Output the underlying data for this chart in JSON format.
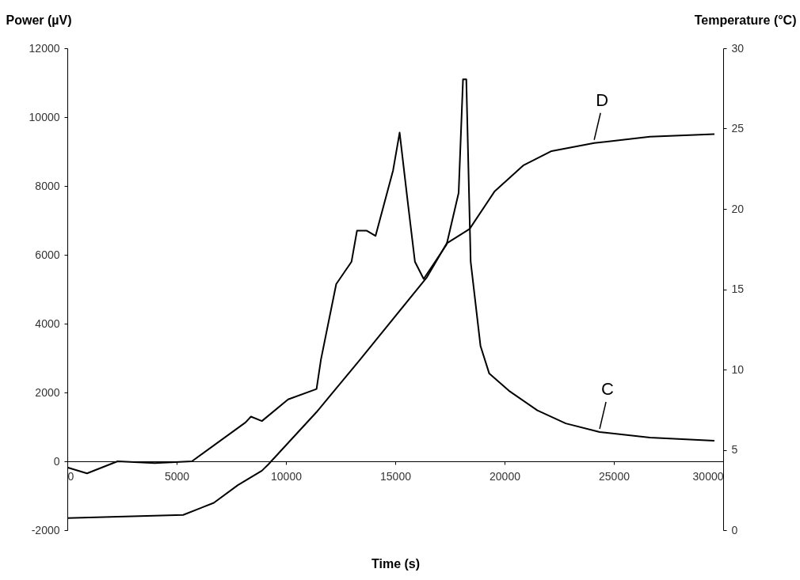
{
  "chart_data": {
    "type": "line",
    "xlabel": "Time (s)",
    "ylabel": "Power (µV)",
    "y2label": "Temperature (°C)",
    "xlim": [
      0,
      30000
    ],
    "xticks": [
      0,
      5000,
      10000,
      15000,
      20000,
      25000,
      30000
    ],
    "ylim": [
      -2000,
      12000
    ],
    "yticks": [
      -2000,
      0,
      2000,
      4000,
      6000,
      8000,
      10000,
      12000
    ],
    "y2lim": [
      0,
      30
    ],
    "y2ticks": [
      0,
      5,
      10,
      15,
      20,
      25,
      30
    ],
    "grid": false,
    "marker": "none",
    "line_style": "solid",
    "series": [
      {
        "name": "C",
        "color": "#000000",
        "x": [
          0,
          900,
          2300,
          4000,
          5700,
          8150,
          8400,
          8900,
          10100,
          11400,
          11600,
          12300,
          13000,
          13250,
          13700,
          14100,
          14900,
          15200,
          15550,
          15900,
          16300,
          17350,
          17900,
          18100,
          18250,
          18450,
          18900,
          19300,
          20200,
          21500,
          22800,
          24350,
          26650,
          29600
        ],
        "values": [
          -180,
          -350,
          0,
          -50,
          0,
          1130,
          1300,
          1170,
          1800,
          2100,
          2950,
          5150,
          5800,
          6700,
          6700,
          6550,
          8450,
          9550,
          7650,
          5800,
          5300,
          6300,
          7800,
          11100,
          11100,
          5800,
          3350,
          2550,
          2050,
          1480,
          1100,
          850,
          690,
          600
        ]
      },
      {
        "name": "D",
        "color": "#000000",
        "axis": "y2",
        "x": [
          0,
          5300,
          6700,
          7800,
          8900,
          9200,
          11400,
          13350,
          16450,
          17350,
          18400,
          19550,
          20850,
          22150,
          24100,
          26650,
          29600
        ],
        "values": [
          0.75,
          0.95,
          1.7,
          2.8,
          3.7,
          4.1,
          7.35,
          10.55,
          15.75,
          17.85,
          18.75,
          21.1,
          22.7,
          23.6,
          24.1,
          24.5,
          24.65
        ]
      }
    ]
  }
}
